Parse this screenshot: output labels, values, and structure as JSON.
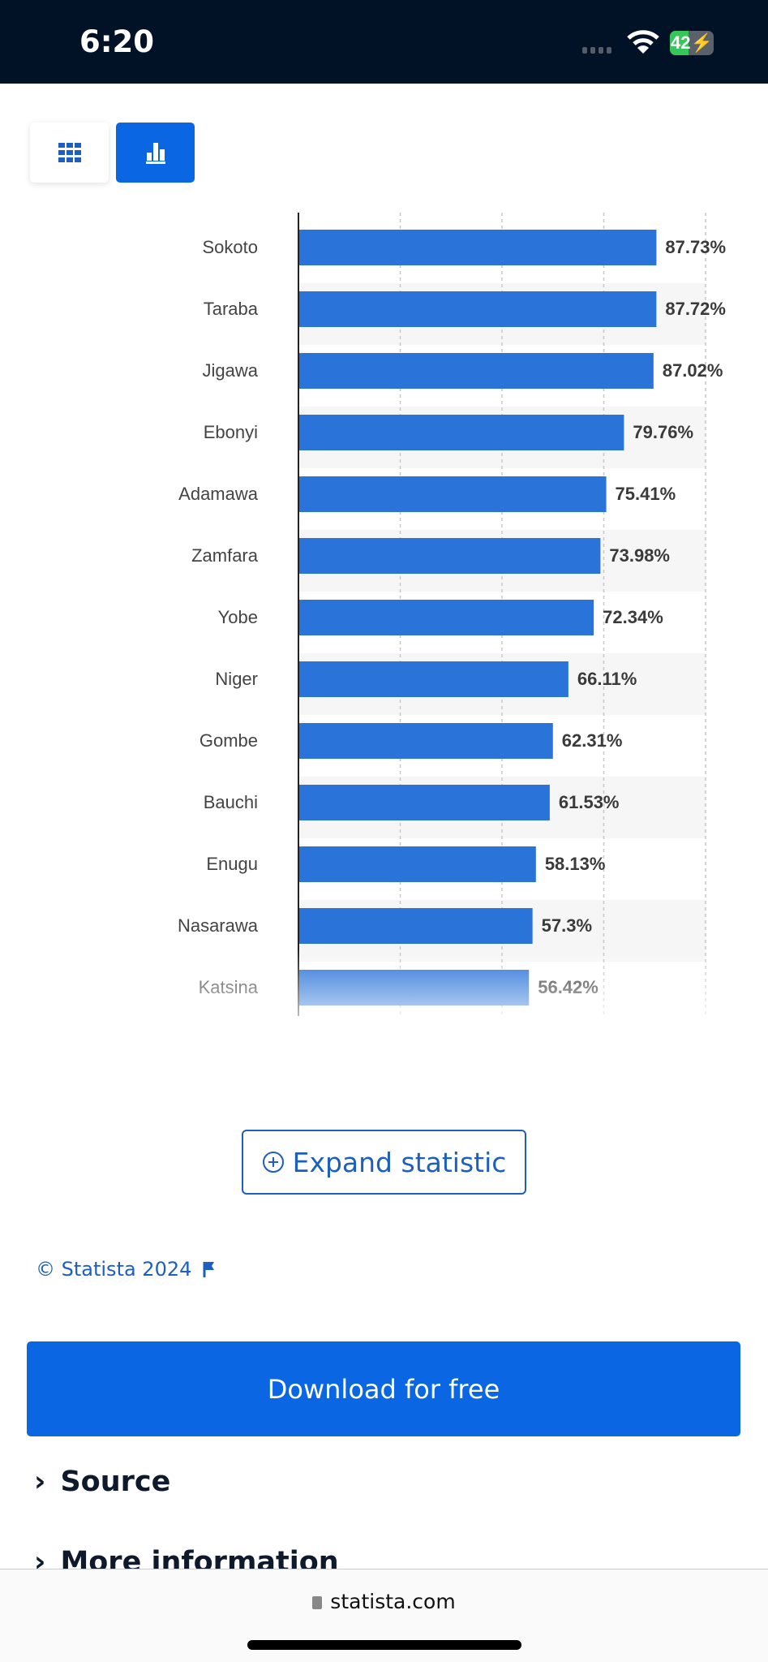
{
  "status_bar": {
    "time": "6:20",
    "battery": "42"
  },
  "view_toggle": {
    "table_icon": "grid-icon",
    "chart_icon": "bar-chart-icon",
    "active": "chart"
  },
  "chart_data": {
    "type": "bar",
    "orientation": "horizontal",
    "categories": [
      "Sokoto",
      "Taraba",
      "Jigawa",
      "Ebonyi",
      "Adamawa",
      "Zamfara",
      "Yobe",
      "Niger",
      "Gombe",
      "Bauchi",
      "Enugu",
      "Nasarawa",
      "Katsina"
    ],
    "values": [
      87.73,
      87.72,
      87.02,
      79.76,
      75.41,
      73.98,
      72.34,
      66.11,
      62.31,
      61.53,
      58.13,
      57.3,
      56.42
    ],
    "labels": [
      "87.73%",
      "87.72%",
      "87.02%",
      "79.76%",
      "75.41%",
      "73.98%",
      "72.34%",
      "66.11%",
      "62.31%",
      "61.53%",
      "58.13%",
      "57.3%",
      "56.42%"
    ],
    "xlim": [
      0,
      100
    ],
    "gridlines": [
      25,
      50,
      75,
      100
    ],
    "grid": true,
    "bar_color": "#2a73d9"
  },
  "expand_button": {
    "label": "Expand statistic",
    "icon": "plus-circle-icon"
  },
  "copyright": {
    "text": "© Statista 2024",
    "icon": "flag-icon"
  },
  "download_button": {
    "label": "Download for free"
  },
  "accordion": [
    {
      "label": "Source"
    },
    {
      "label": "More information"
    }
  ],
  "browser": {
    "url": "statista.com",
    "icon": "lock-icon"
  }
}
